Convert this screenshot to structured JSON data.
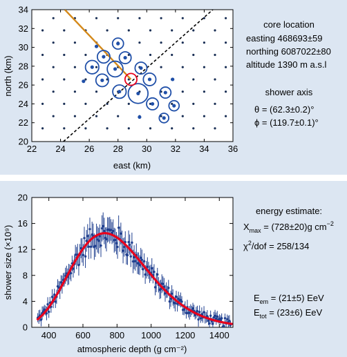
{
  "chart_data": [
    {
      "type": "scatter",
      "xlabel": "east (km)",
      "ylabel": "north (km)",
      "xlim": [
        22,
        36
      ],
      "ylim": [
        20,
        34
      ],
      "xticks": [
        "22",
        "24",
        "26",
        "28",
        "30",
        "32",
        "34",
        "36"
      ],
      "yticks": [
        "20",
        "22",
        "24",
        "26",
        "28",
        "30",
        "32",
        "34"
      ],
      "grid": false,
      "detector_grid": {
        "x_start": 22.75,
        "x_step": 1.5,
        "y_start": 21.4,
        "y_step": 1.3,
        "row_offset": 0.75
      },
      "triggered_stations": [
        {
          "x": 27.8,
          "y": 27.7,
          "ring": 1.0
        },
        {
          "x": 28.1,
          "y": 25.3,
          "ring": 0.85
        },
        {
          "x": 29.4,
          "y": 25.1,
          "ring": 1.25
        },
        {
          "x": 30.2,
          "y": 26.6,
          "ring": 0.8
        },
        {
          "x": 29.6,
          "y": 27.8,
          "ring": 0.75
        },
        {
          "x": 28.5,
          "y": 28.9,
          "ring": 0.75
        },
        {
          "x": 27.0,
          "y": 29.0,
          "ring": 0.8
        },
        {
          "x": 26.2,
          "y": 27.9,
          "ring": 0.85
        },
        {
          "x": 26.9,
          "y": 26.5,
          "ring": 0.8
        },
        {
          "x": 28.0,
          "y": 30.4,
          "ring": 0.7
        },
        {
          "x": 30.4,
          "y": 24.0,
          "ring": 0.75
        },
        {
          "x": 31.3,
          "y": 25.2,
          "ring": 0.7
        },
        {
          "x": 31.9,
          "y": 23.8,
          "ring": 0.65
        },
        {
          "x": 31.2,
          "y": 22.5,
          "ring": 0.6
        },
        {
          "x": 26.5,
          "y": 30.1,
          "ring": 0.0
        },
        {
          "x": 25.6,
          "y": 26.4,
          "ring": 0.0
        },
        {
          "x": 31.8,
          "y": 26.6,
          "ring": 0.0
        },
        {
          "x": 29.5,
          "y": 22.6,
          "ring": 0.0
        }
      ],
      "core": {
        "x": 28.9,
        "y": 26.6,
        "ring": 0.75
      },
      "axis_projection": {
        "x": [
          24.3,
          28.9
        ],
        "y": [
          34.0,
          26.6
        ],
        "color": "#d4891a"
      },
      "perpendicular_line": {
        "x": [
          24.2,
          34.6
        ],
        "y": [
          20.0,
          34.0
        ]
      },
      "annotation": {
        "heading": "core location",
        "easting": "easting 468693±59",
        "northing": "northing 6087022±80",
        "altitude": "altitude 1390 m a.s.l",
        "axis_heading": "shower axis",
        "theta": "θ = (62.3±0.2)°",
        "phi": "ϕ = (119.7±0.1)°"
      }
    },
    {
      "type": "scatter",
      "xlabel": "atmospheric depth (g cm⁻²)",
      "ylabel": "shower size (×10⁹)",
      "xlim": [
        300,
        1480
      ],
      "ylim": [
        0,
        20
      ],
      "xticks": [
        "400",
        "600",
        "800",
        "1000",
        "1200",
        "1400"
      ],
      "yticks": [
        "0",
        "4",
        "8",
        "12",
        "16",
        "20"
      ],
      "grid": false,
      "fit": {
        "type": "gaisser-hillas",
        "xmax": 728,
        "nmax": 14.5,
        "x_range": [
          330,
          1480
        ],
        "color": "#e8001c"
      },
      "data_color": "#1f3f8f",
      "annotation": {
        "heading": "energy estimate:",
        "xmax": "X",
        "xmax_sub": "max",
        "xmax_val": " = (728±20)g cm",
        "xmax_exp": "−2",
        "chi": "χ",
        "chi_exp": "2",
        "chi_val": "/dof = 258/134",
        "eem": "E",
        "eem_sub": "em",
        "eem_val": " = (21±5) EeV",
        "etot": "E",
        "etot_sub": "tot",
        "etot_val": " = (23±6) EeV"
      }
    }
  ]
}
